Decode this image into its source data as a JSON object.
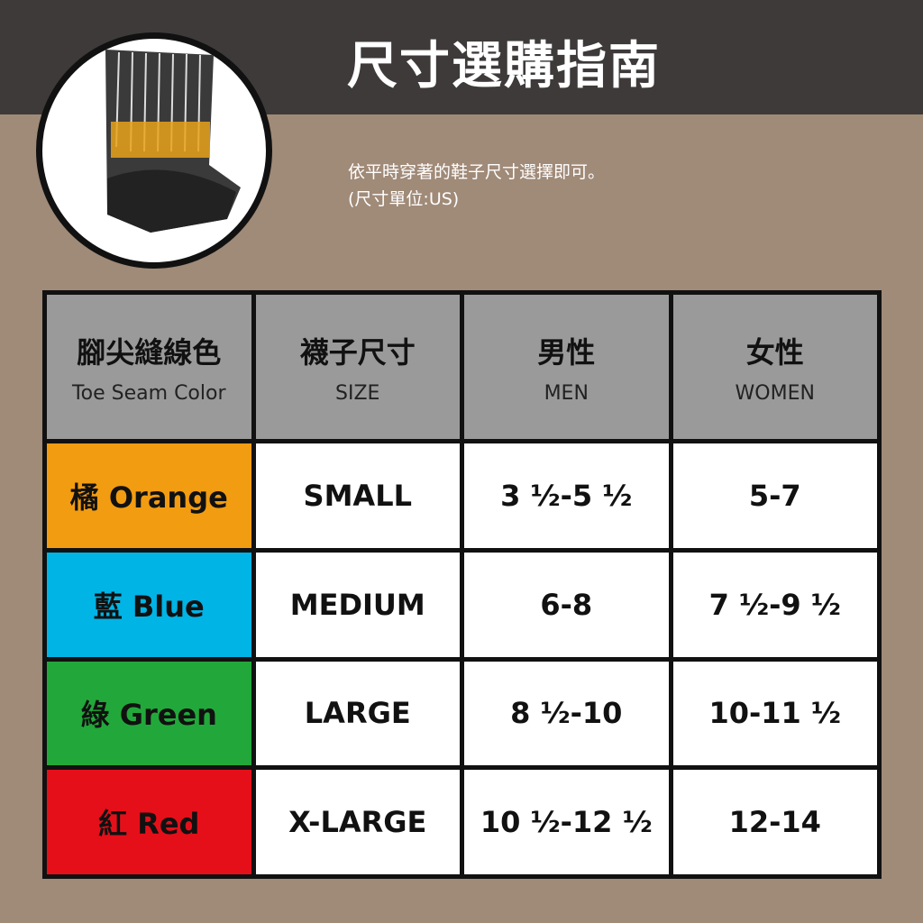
{
  "header": {
    "title": "尺寸選購指南"
  },
  "intro": {
    "line1": "依平時穿著的鞋子尺寸選擇即可。",
    "line2": "(尺寸單位:US)"
  },
  "colors": {
    "orange": "#f29c11",
    "blue": "#00b4e6",
    "green": "#22a83a",
    "red": "#e50f1a",
    "header_gray": "#9a9a9a",
    "top_bar": "#3d3a39",
    "background": "#a08a78"
  },
  "table": {
    "columns": [
      {
        "zh": "腳尖縫線色",
        "en": "Toe Seam Color"
      },
      {
        "zh": "襪子尺寸",
        "en": "SIZE"
      },
      {
        "zh": "男性",
        "en": "MEN"
      },
      {
        "zh": "女性",
        "en": "WOMEN"
      }
    ],
    "rows": [
      {
        "color": "橘 Orange",
        "size": "SMALL",
        "men": "3 ½-5 ½",
        "women": "5-7",
        "swatch": "#f29c11"
      },
      {
        "color": "藍 Blue",
        "size": "MEDIUM",
        "men": "6-8",
        "women": "7 ½-9 ½",
        "swatch": "#00b4e6"
      },
      {
        "color": "綠 Green",
        "size": "LARGE",
        "men": "8 ½-10",
        "women": "10-11 ½",
        "swatch": "#22a83a"
      },
      {
        "color": "紅 Red",
        "size": "X-LARGE",
        "men": "10 ½-12 ½",
        "women": "12-14",
        "swatch": "#e50f1a"
      }
    ]
  }
}
